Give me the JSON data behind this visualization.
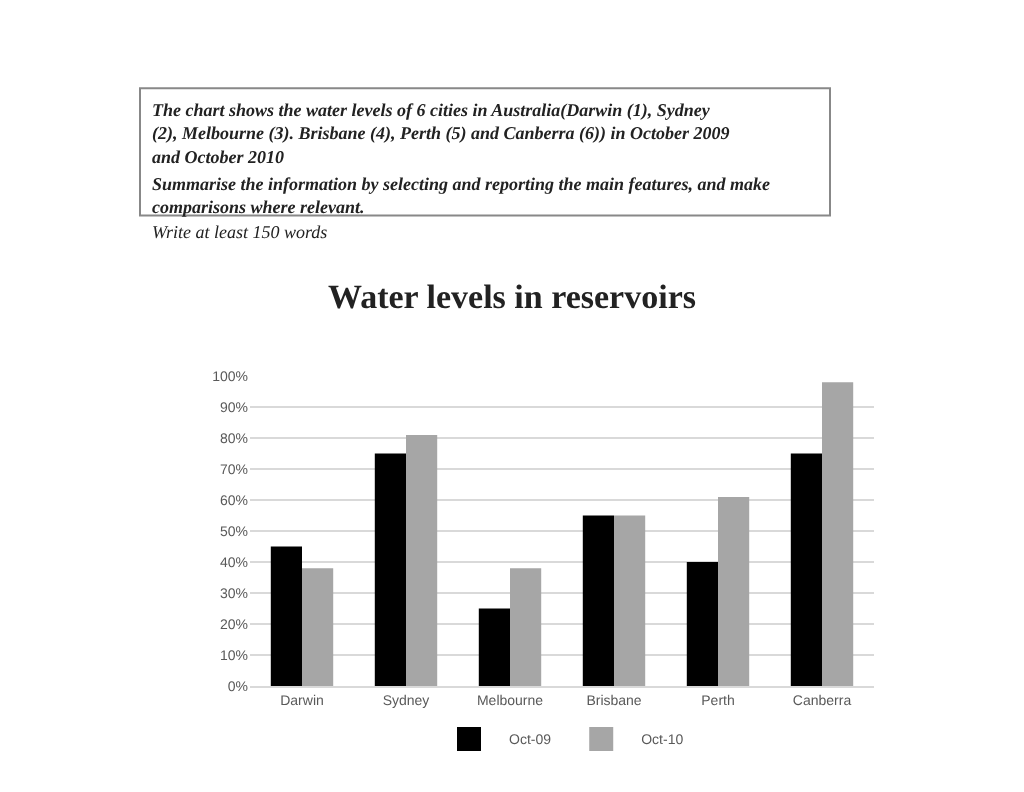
{
  "chart_data": {
    "type": "bar",
    "title": "Water levels in reservoirs",
    "annotations": [
      "The chart shows the water levels of 6 cities in Australia(Darwin (1), Sydney (2), Melbourne (3). Brisbane (4), Perth (5) and Canberra (6)) in October 2009 and October 2010",
      "Summarise the information by selecting and reporting the main features, and make comparisons where relevant.",
      "Write at least 150 words"
    ],
    "categories": [
      "Darwin",
      "Sydney",
      "Melbourne",
      "Brisbane",
      "Perth",
      "Canberra"
    ],
    "series": [
      {
        "name": "Oct-09",
        "color": "#000000",
        "values": [
          45,
          75,
          25,
          55,
          40,
          75
        ]
      },
      {
        "name": "Oct-10",
        "color": "#a6a6a6",
        "values": [
          38,
          81,
          38,
          55,
          61,
          98
        ]
      }
    ],
    "ylim": [
      0,
      100
    ],
    "yticks": [
      {
        "value": 0,
        "label": "0%"
      },
      {
        "value": 10,
        "label": "10%"
      },
      {
        "value": 20,
        "label": "20%"
      },
      {
        "value": 30,
        "label": "30%"
      },
      {
        "value": 40,
        "label": "40%"
      },
      {
        "value": 50,
        "label": "50%"
      },
      {
        "value": 60,
        "label": "60%"
      },
      {
        "value": 70,
        "label": "70%"
      },
      {
        "value": 80,
        "label": "80%"
      },
      {
        "value": 90,
        "label": "90%"
      },
      {
        "value": 100,
        "label": "100%"
      }
    ],
    "grid": "y",
    "legend": "bottom"
  }
}
